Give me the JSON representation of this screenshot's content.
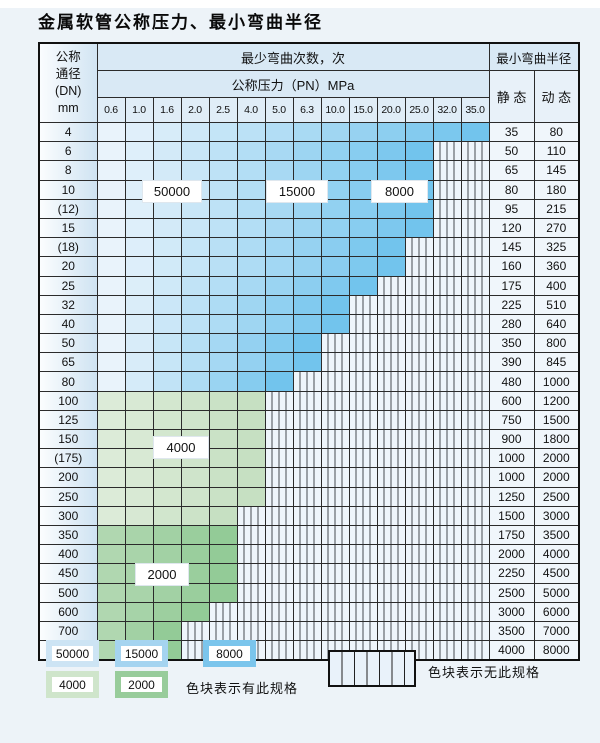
{
  "title": "金属软管公称压力、最小弯曲半径",
  "table": {
    "dn_header": [
      "公称",
      "通径",
      "(DN)",
      "mm"
    ],
    "bend_times_header": "最少弯曲次数，次",
    "pressure_header": "公称压力（PN）MPa",
    "radius_header": "最小弯曲半径",
    "static_header": "静 态",
    "dynamic_header": "动 态"
  },
  "colors": {
    "blue_zone": [
      "#e9f3fb",
      "#72c4ed"
    ],
    "green_4000_zone": [
      "#dcebd8",
      "#c6e0c2"
    ],
    "green_2000_zone": [
      "#b0d7b0",
      "#93cb97"
    ],
    "header_bg": "#d9e9f5",
    "hatch_bg": "#eef5fb",
    "page_bg": "#edf3f8"
  },
  "legend": {
    "items": [
      {
        "label": "50000",
        "color": "#cde4f4"
      },
      {
        "label": "15000",
        "color": "#a5d4f0"
      },
      {
        "label": "8000",
        "color": "#7bc5ec"
      },
      {
        "label": "4000",
        "color": "#cfe5cb"
      },
      {
        "label": "2000",
        "color": "#98cc9b"
      }
    ],
    "has_spec_note": "色块表示有此规格",
    "no_spec_note": "色块表示无此规格"
  },
  "chart_data": {
    "type": "heatmap",
    "title": "金属软管公称压力、最小弯曲半径",
    "x_label": "公称压力（PN）MPa",
    "pressures": [
      "0.6",
      "1.0",
      "1.6",
      "2.0",
      "2.5",
      "4.0",
      "5.0",
      "6.3",
      "10.0",
      "15.0",
      "20.0",
      "25.0",
      "32.0",
      "35.0"
    ],
    "y_label": "公称通径(DN) mm",
    "bend_cycle_values": [
      50000,
      15000,
      8000,
      4000,
      2000
    ],
    "legend_meaning": {
      "colored": "色块表示有此规格",
      "hatched": "色块表示无此规格"
    },
    "rows": [
      {
        "dn": "4",
        "colored_cols": 14,
        "zone": "blue_zone",
        "pn_max": "35.0",
        "static": "35",
        "dynamic": "80"
      },
      {
        "dn": "6",
        "colored_cols": 12,
        "zone": "blue_zone",
        "pn_max": "25.0",
        "static": "50",
        "dynamic": "110"
      },
      {
        "dn": "8",
        "colored_cols": 12,
        "zone": "blue_zone",
        "pn_max": "25.0",
        "static": "65",
        "dynamic": "145"
      },
      {
        "dn": "10",
        "colored_cols": 12,
        "zone": "blue_zone",
        "pn_max": "25.0",
        "static": "80",
        "dynamic": "180"
      },
      {
        "dn": "(12)",
        "colored_cols": 12,
        "zone": "blue_zone",
        "pn_max": "25.0",
        "static": "95",
        "dynamic": "215"
      },
      {
        "dn": "15",
        "colored_cols": 12,
        "zone": "blue_zone",
        "pn_max": "25.0",
        "static": "120",
        "dynamic": "270"
      },
      {
        "dn": "(18)",
        "colored_cols": 11,
        "zone": "blue_zone",
        "pn_max": "20.0",
        "static": "145",
        "dynamic": "325"
      },
      {
        "dn": "20",
        "colored_cols": 11,
        "zone": "blue_zone",
        "pn_max": "20.0",
        "static": "160",
        "dynamic": "360"
      },
      {
        "dn": "25",
        "colored_cols": 10,
        "zone": "blue_zone",
        "pn_max": "15.0",
        "static": "175",
        "dynamic": "400"
      },
      {
        "dn": "32",
        "colored_cols": 9,
        "zone": "blue_zone",
        "pn_max": "10.0",
        "static": "225",
        "dynamic": "510"
      },
      {
        "dn": "40",
        "colored_cols": 9,
        "zone": "blue_zone",
        "pn_max": "10.0",
        "static": "280",
        "dynamic": "640"
      },
      {
        "dn": "50",
        "colored_cols": 8,
        "zone": "blue_zone",
        "pn_max": "6.3",
        "static": "350",
        "dynamic": "800"
      },
      {
        "dn": "65",
        "colored_cols": 8,
        "zone": "blue_zone",
        "pn_max": "6.3",
        "static": "390",
        "dynamic": "845"
      },
      {
        "dn": "80",
        "colored_cols": 7,
        "zone": "blue_zone",
        "pn_max": "5.0",
        "static": "480",
        "dynamic": "1000"
      },
      {
        "dn": "100",
        "colored_cols": 6,
        "zone": "green_4000_zone",
        "pn_max": "4.0",
        "static": "600",
        "dynamic": "1200"
      },
      {
        "dn": "125",
        "colored_cols": 6,
        "zone": "green_4000_zone",
        "pn_max": "4.0",
        "static": "750",
        "dynamic": "1500"
      },
      {
        "dn": "150",
        "colored_cols": 6,
        "zone": "green_4000_zone",
        "pn_max": "4.0",
        "static": "900",
        "dynamic": "1800"
      },
      {
        "dn": "(175)",
        "colored_cols": 6,
        "zone": "green_4000_zone",
        "pn_max": "4.0",
        "static": "1000",
        "dynamic": "2000"
      },
      {
        "dn": "200",
        "colored_cols": 6,
        "zone": "green_4000_zone",
        "pn_max": "4.0",
        "static": "1000",
        "dynamic": "2000"
      },
      {
        "dn": "250",
        "colored_cols": 6,
        "zone": "green_4000_zone",
        "pn_max": "4.0",
        "static": "1250",
        "dynamic": "2500"
      },
      {
        "dn": "300",
        "colored_cols": 5,
        "zone": "green_4000_zone",
        "pn_max": "2.5",
        "static": "1500",
        "dynamic": "3000"
      },
      {
        "dn": "350",
        "colored_cols": 5,
        "zone": "green_2000_zone",
        "pn_max": "2.5",
        "static": "1750",
        "dynamic": "3500"
      },
      {
        "dn": "400",
        "colored_cols": 5,
        "zone": "green_2000_zone",
        "pn_max": "2.5",
        "static": "2000",
        "dynamic": "4000"
      },
      {
        "dn": "450",
        "colored_cols": 5,
        "zone": "green_2000_zone",
        "pn_max": "2.5",
        "static": "2250",
        "dynamic": "4500"
      },
      {
        "dn": "500",
        "colored_cols": 5,
        "zone": "green_2000_zone",
        "pn_max": "2.5",
        "static": "2500",
        "dynamic": "5000"
      },
      {
        "dn": "600",
        "colored_cols": 4,
        "zone": "green_2000_zone",
        "pn_max": "2.0",
        "static": "3000",
        "dynamic": "6000"
      },
      {
        "dn": "700",
        "colored_cols": 3,
        "zone": "green_2000_zone",
        "pn_max": "1.6",
        "static": "3500",
        "dynamic": "7000"
      },
      {
        "dn": "800",
        "colored_cols": 3,
        "zone": "green_2000_zone",
        "pn_max": "1.6",
        "static": "4000",
        "dynamic": "8000"
      }
    ]
  }
}
